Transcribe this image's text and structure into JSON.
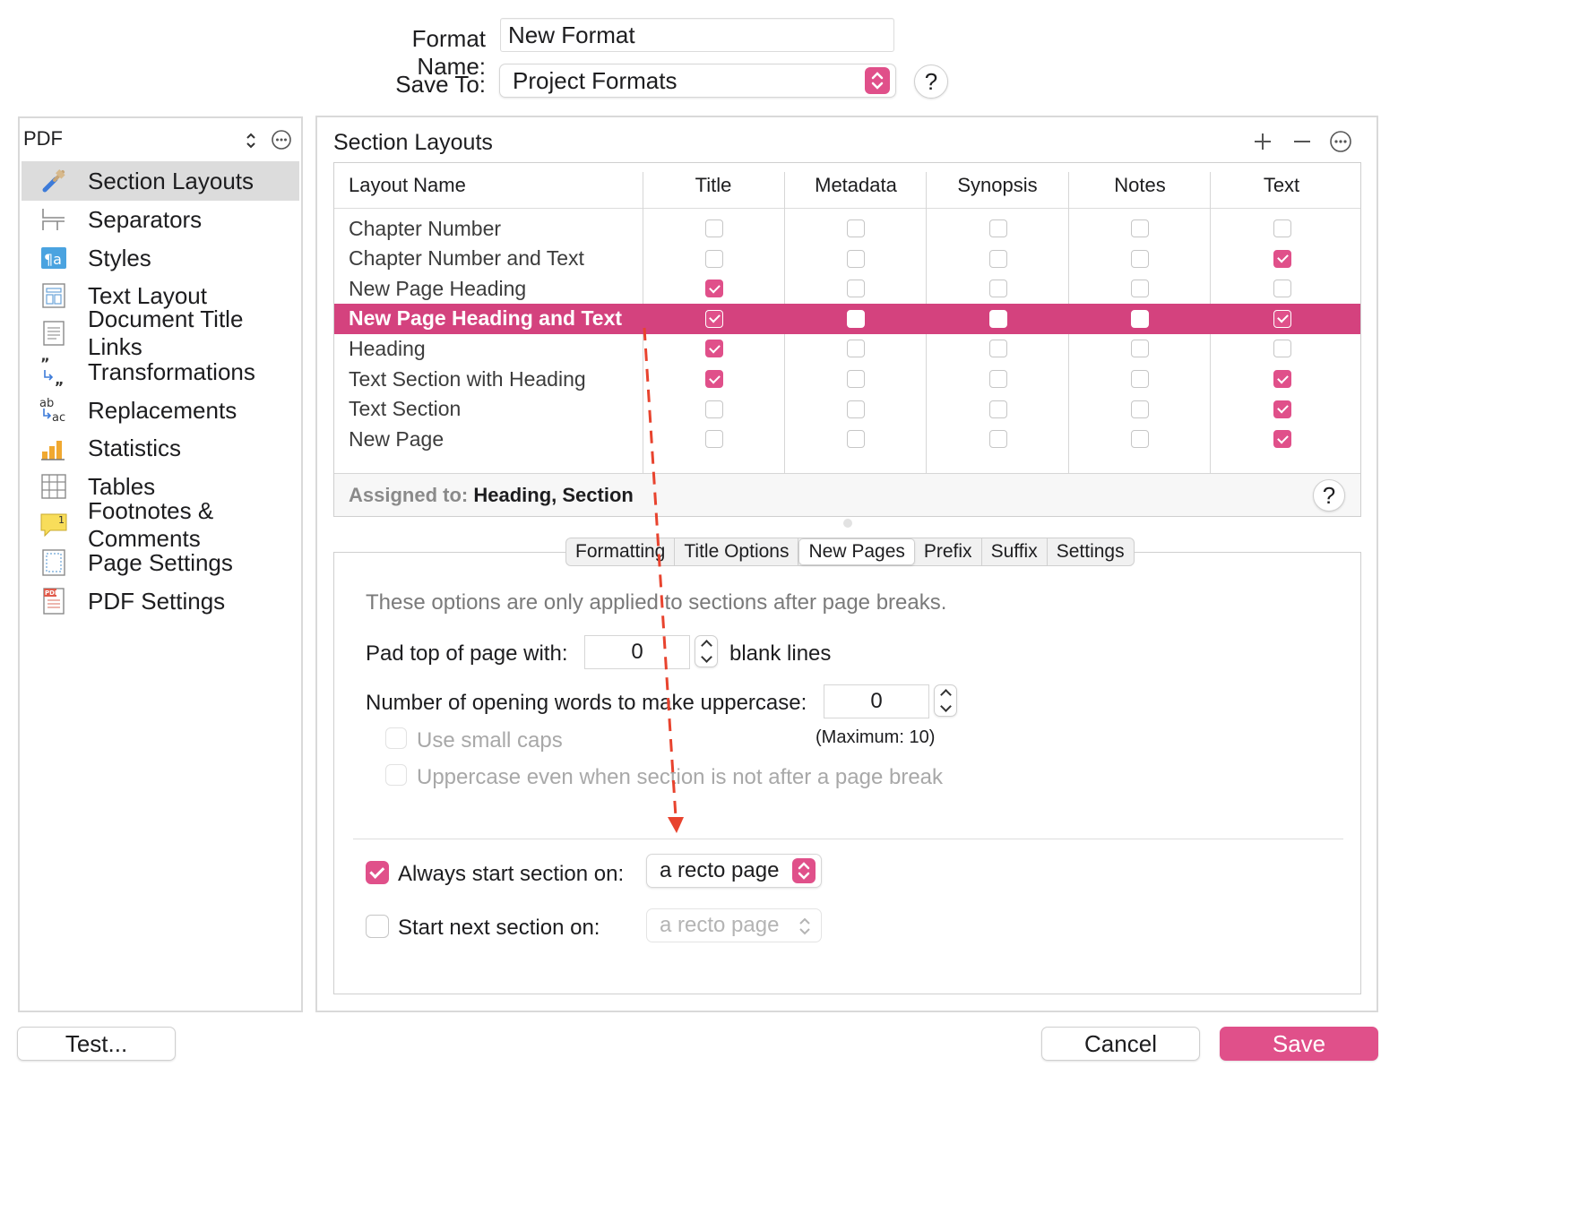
{
  "header": {
    "format_name_label": "Format Name:",
    "format_name_value": "New Format",
    "save_to_label": "Save To:",
    "save_to_value": "Project Formats",
    "help_label": "?"
  },
  "sidebar": {
    "selector_label": "PDF",
    "items": [
      {
        "label": "Section Layouts",
        "icon": "brush-icon",
        "selected": true
      },
      {
        "label": "Separators",
        "icon": "separators-icon"
      },
      {
        "label": "Styles",
        "icon": "styles-icon"
      },
      {
        "label": "Text Layout",
        "icon": "text-layout-icon"
      },
      {
        "label": "Document Title Links",
        "icon": "document-icon"
      },
      {
        "label": "Transformations",
        "icon": "transformations-icon"
      },
      {
        "label": "Replacements",
        "icon": "replacements-icon"
      },
      {
        "label": "Statistics",
        "icon": "statistics-icon"
      },
      {
        "label": "Tables",
        "icon": "tables-icon"
      },
      {
        "label": "Footnotes & Comments",
        "icon": "footnotes-icon"
      },
      {
        "label": "Page Settings",
        "icon": "page-settings-icon"
      },
      {
        "label": "PDF Settings",
        "icon": "pdf-settings-icon"
      }
    ]
  },
  "main": {
    "title": "Section Layouts",
    "columns": [
      "Layout Name",
      "Title",
      "Metadata",
      "Synopsis",
      "Notes",
      "Text"
    ],
    "rows": [
      {
        "name": "Chapter Number",
        "checks": [
          false,
          false,
          false,
          false,
          false
        ]
      },
      {
        "name": "Chapter Number and Text",
        "checks": [
          false,
          false,
          false,
          false,
          true
        ]
      },
      {
        "name": "New Page Heading",
        "checks": [
          true,
          false,
          false,
          false,
          false
        ]
      },
      {
        "name": "New Page Heading and Text",
        "checks": [
          true,
          false,
          false,
          false,
          true
        ],
        "selected": true
      },
      {
        "name": "Heading",
        "checks": [
          true,
          false,
          false,
          false,
          false
        ]
      },
      {
        "name": "Text Section with Heading",
        "checks": [
          true,
          false,
          false,
          false,
          true
        ]
      },
      {
        "name": "Text Section",
        "checks": [
          false,
          false,
          false,
          false,
          true
        ]
      },
      {
        "name": "New Page",
        "checks": [
          false,
          false,
          false,
          false,
          true
        ]
      }
    ],
    "assigned_label": "Assigned to:",
    "assigned_value": "Heading, Section",
    "tabs": [
      "Formatting",
      "Title Options",
      "New Pages",
      "Prefix",
      "Suffix",
      "Settings"
    ],
    "active_tab": "New Pages",
    "new_pages": {
      "info": "These options are only applied to sections after page breaks.",
      "pad_label": "Pad top of page with:",
      "pad_value": "0",
      "pad_suffix": "blank lines",
      "uppercase_label": "Number of opening words to make uppercase:",
      "uppercase_value": "0",
      "maximum_note": "(Maximum: 10)",
      "small_caps_label": "Use small caps",
      "uppercase_always_label": "Uppercase even when section is not after a page break",
      "always_start_label": "Always start section on:",
      "always_start_checked": true,
      "always_start_value": "a recto page",
      "start_next_label": "Start next section on:",
      "start_next_checked": false,
      "start_next_value": "a recto page"
    }
  },
  "footer": {
    "test_label": "Test...",
    "cancel_label": "Cancel",
    "save_label": "Save"
  },
  "colors": {
    "accent": "#e0508a",
    "selected_row": "#d4427e",
    "annotation_arrow": "#e8432e"
  }
}
